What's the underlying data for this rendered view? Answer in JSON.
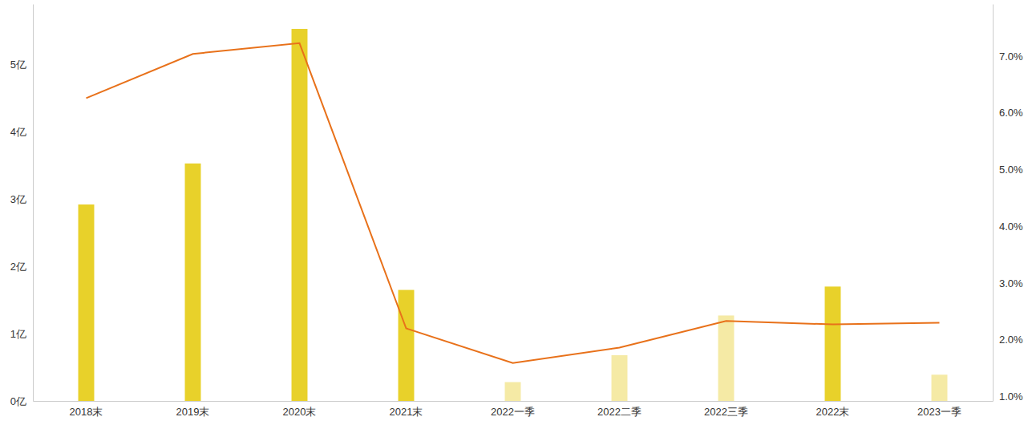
{
  "chart_data": {
    "type": "bar",
    "categories": [
      "2018末",
      "2019末",
      "2020末",
      "2021末",
      "2022一季",
      "2022二季",
      "2022三季",
      "2022末",
      "2023一季"
    ],
    "series": [
      {
        "type": "bar",
        "values": [
          2.92,
          3.53,
          5.53,
          1.65,
          0.28,
          0.68,
          1.27,
          1.7,
          0.39
        ],
        "colors": [
          "#e8d12a",
          "#e8d12a",
          "#e8d12a",
          "#e8d12a",
          "#f5eaa5",
          "#f5eaa5",
          "#f5eaa5",
          "#e8d12a",
          "#f5eaa5"
        ]
      },
      {
        "type": "line",
        "values": [
          6.26,
          7.04,
          7.23,
          2.2,
          1.59,
          1.86,
          2.33,
          2.27,
          2.3
        ],
        "color": "#e8711a",
        "axis": "y2"
      }
    ],
    "ylim": [
      0,
      5.9
    ],
    "yticks": [
      {
        "value": 0,
        "label": "0亿"
      },
      {
        "value": 1,
        "label": "1亿"
      },
      {
        "value": 2,
        "label": "2亿"
      },
      {
        "value": 3,
        "label": "3亿"
      },
      {
        "value": 4,
        "label": "4亿"
      },
      {
        "value": 5,
        "label": "5亿"
      }
    ],
    "y2lim": [
      0.92,
      7.92
    ],
    "y2ticks": [
      {
        "value": 1,
        "label": "1.0%"
      },
      {
        "value": 2,
        "label": "2.0%"
      },
      {
        "value": 3,
        "label": "3.0%"
      },
      {
        "value": 4,
        "label": "4.0%"
      },
      {
        "value": 5,
        "label": "5.0%"
      },
      {
        "value": 6,
        "label": "6.0%"
      },
      {
        "value": 7,
        "label": "7.0%"
      }
    ],
    "grid": false
  }
}
